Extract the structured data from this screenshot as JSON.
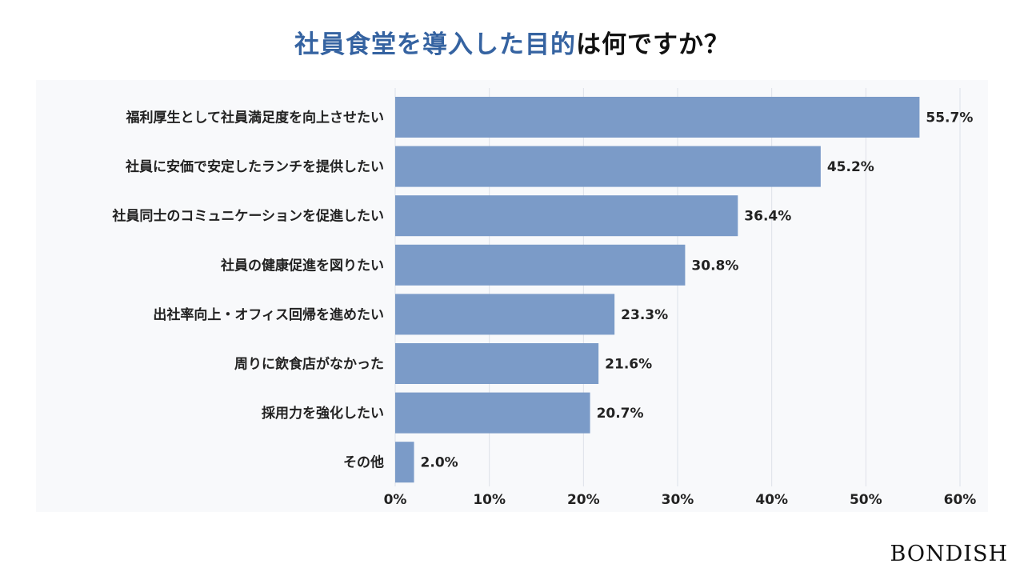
{
  "chart_data": {
    "type": "bar",
    "orientation": "horizontal",
    "title_highlight": "社員食堂を導入した目的",
    "title_rest": "は何ですか？",
    "categories": [
      "福利厚生として社員満足度を向上させたい",
      "社員に安価で安定したランチを提供したい",
      "社員同士のコミュニケーションを促進したい",
      "社員の健康促進を図りたい",
      "出社率向上・オフィス回帰を進めたい",
      "周りに飲食店がなかった",
      "採用力を強化したい",
      "その他"
    ],
    "values": [
      55.7,
      45.2,
      36.4,
      30.8,
      23.3,
      21.6,
      20.7,
      2.0
    ],
    "value_labels": [
      "55.7%",
      "45.2%",
      "36.4%",
      "30.8%",
      "23.3%",
      "21.6%",
      "20.7%",
      "2.0%"
    ],
    "xlim": [
      0,
      60
    ],
    "xticks": [
      0,
      10,
      20,
      30,
      40,
      50,
      60
    ],
    "xtick_labels": [
      "0%",
      "10%",
      "20%",
      "30%",
      "40%",
      "50%",
      "60%"
    ],
    "grid": true,
    "bar_color": "#7b9bc8",
    "title_color": "#3563a1"
  },
  "brand": "BONDISH"
}
